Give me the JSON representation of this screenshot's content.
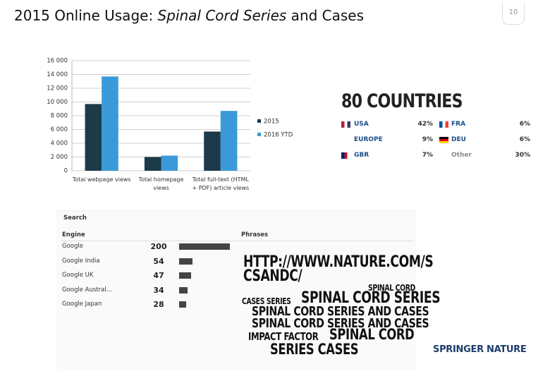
{
  "header": {
    "title": [
      "2015 Online Usage: ",
      "Spinal Cord Series",
      " and Cases"
    ],
    "page_number": "10"
  },
  "chart_data": {
    "type": "bar",
    "categories": [
      "Total webpage views",
      "Total homepage views",
      "Total full-text (HTML + PDF) article views"
    ],
    "series": [
      {
        "name": "2015",
        "color": "#1c3a4a",
        "values": [
          9700,
          2000,
          5700
        ]
      },
      {
        "name": "2016 YTD",
        "color": "#3a9ad9",
        "values": [
          13700,
          2200,
          8700
        ]
      }
    ],
    "ylim": [
      0,
      16000
    ],
    "yticks": [
      0,
      {
        "value": 2000,
        "label": "2 000"
      },
      {
        "value": 4000,
        "label": "4 000"
      },
      {
        "value": 6000,
        "label": "6 000"
      },
      {
        "value": 8000,
        "label": "8 000"
      },
      {
        "value": 10000,
        "label": "10 000"
      },
      {
        "value": 12000,
        "label": "12 000"
      },
      {
        "value": 14000,
        "label": "14 000"
      },
      {
        "value": 16000,
        "label": "16 000"
      }
    ],
    "grid": true,
    "legend": "right"
  },
  "countries": {
    "title": "80 COUNTRIES",
    "rows": [
      [
        "USA",
        "42%",
        "FRA",
        "6%"
      ],
      [
        "EUROPE",
        "9%",
        "DEU",
        "6%"
      ],
      [
        "GBR",
        "7%",
        "Other",
        "30%"
      ]
    ]
  },
  "search": {
    "title": "Search",
    "engine_header": "Engine",
    "phrases_header": "Phrases",
    "engines": [
      "Google",
      "Google India",
      "Google UK",
      "Google Austral...",
      "Google Japan"
    ],
    "counts": [
      200,
      54,
      47,
      34,
      28
    ],
    "bar_color": "#444444",
    "phrases": [
      "HTTP://WWW.NATURE.COM/S",
      "CSANDC/",
      "SPINAL CORD",
      "CASES SERIES",
      "SPINAL CORD SERIES",
      "SPINAL CORD SERIES AND CASES",
      "SPINAL CORD SERIES AND CASES",
      "IMPACT FACTOR",
      "SPINAL CORD",
      "SERIES CASES"
    ]
  },
  "logo": "SPRINGER NATURE"
}
